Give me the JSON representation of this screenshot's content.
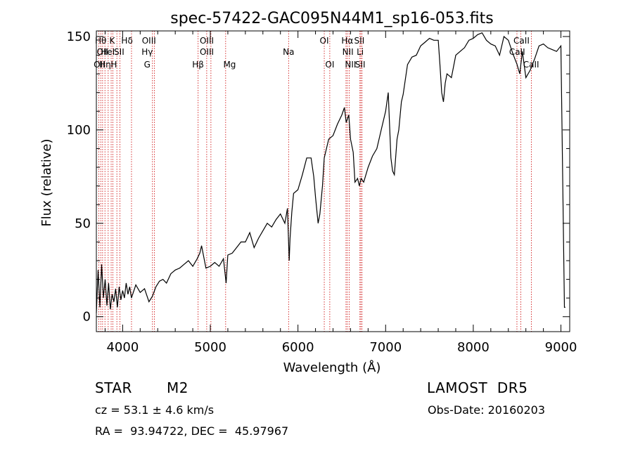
{
  "chart_data": {
    "type": "line",
    "title": "spec-57422-GAC095N44M1_sp16-053.fits",
    "xlabel": "Wavelength (Å)",
    "ylabel": "Flux (relative)",
    "xlim": [
      3700,
      9100
    ],
    "ylim": [
      -8,
      153
    ],
    "xticks": [
      4000,
      5000,
      6000,
      7000,
      8000,
      9000
    ],
    "yticks": [
      0,
      50,
      100,
      150
    ],
    "grid": false,
    "series": [
      {
        "x": [
          3700,
          3720,
          3740,
          3760,
          3780,
          3800,
          3820,
          3840,
          3860,
          3880,
          3900,
          3920,
          3940,
          3960,
          3980,
          4000,
          4020,
          4040,
          4060,
          4080,
          4100,
          4150,
          4200,
          4250,
          4300,
          4340,
          4380,
          4420,
          4460,
          4500,
          4550,
          4600,
          4650,
          4700,
          4750,
          4800,
          4850,
          4880,
          4900,
          4950,
          5000,
          5050,
          5100,
          5150,
          5180,
          5200,
          5250,
          5300,
          5350,
          5400,
          5450,
          5500,
          5550,
          5600,
          5650,
          5700,
          5750,
          5800,
          5850,
          5880,
          5900,
          5910,
          5930,
          5950,
          6000,
          6050,
          6100,
          6150,
          6180,
          6200,
          6230,
          6250,
          6280,
          6300,
          6350,
          6400,
          6450,
          6500,
          6530,
          6550,
          6580,
          6600,
          6630,
          6650,
          6680,
          6700,
          6720,
          6750,
          6800,
          6850,
          6900,
          6950,
          7000,
          7030,
          7060,
          7080,
          7100,
          7130,
          7150,
          7180,
          7200,
          7250,
          7300,
          7350,
          7400,
          7450,
          7500,
          7550,
          7600,
          7620,
          7640,
          7660,
          7680,
          7700,
          7750,
          7800,
          7850,
          7900,
          7950,
          8000,
          8050,
          8100,
          8150,
          8200,
          8250,
          8300,
          8350,
          8400,
          8450,
          8500,
          8530,
          8560,
          8600,
          8650,
          8700,
          8750,
          8800,
          8850,
          8900,
          8950,
          9000,
          9040,
          9050
        ],
        "y": [
          2,
          25,
          5,
          28,
          10,
          20,
          6,
          18,
          4,
          12,
          8,
          15,
          5,
          16,
          9,
          14,
          10,
          18,
          12,
          16,
          10,
          17,
          13,
          15,
          8,
          11,
          16,
          19,
          20,
          18,
          23,
          25,
          26,
          28,
          30,
          27,
          31,
          34,
          38,
          26,
          27,
          29,
          27,
          31,
          18,
          33,
          34,
          37,
          40,
          40,
          45,
          37,
          42,
          46,
          50,
          48,
          52,
          55,
          50,
          58,
          30,
          42,
          56,
          66,
          68,
          76,
          85,
          85,
          75,
          64,
          50,
          55,
          70,
          85,
          95,
          97,
          103,
          108,
          112,
          104,
          108,
          95,
          88,
          72,
          74,
          70,
          74,
          72,
          80,
          86,
          90,
          100,
          110,
          120,
          85,
          78,
          76,
          95,
          100,
          115,
          119,
          135,
          139,
          140,
          145,
          147,
          149,
          148,
          148,
          135,
          120,
          115,
          125,
          130,
          128,
          140,
          142,
          144,
          148,
          149,
          151,
          152,
          148,
          146,
          145,
          140,
          150,
          148,
          141,
          135,
          130,
          142,
          128,
          132,
          138,
          145,
          146,
          144,
          143,
          142,
          145,
          5,
          5
        ]
      }
    ],
    "line_labels": [
      {
        "wavelength": 3750,
        "label": "Hθ",
        "row": 0
      },
      {
        "wavelength": 3770,
        "label": "OII",
        "row": 1
      },
      {
        "wavelength": 3735,
        "label": "OII",
        "row": 2
      },
      {
        "wavelength": 3800,
        "label": "Hη",
        "row": 2
      },
      {
        "wavelength": 3830,
        "label": "HeI",
        "row": 1
      },
      {
        "wavelength": 3880,
        "label": "K",
        "row": 0
      },
      {
        "wavelength": 3900,
        "label": "H",
        "row": 2
      },
      {
        "wavelength": 3960,
        "label": "SII",
        "row": 1
      },
      {
        "wavelength": 4050,
        "label": "Hδ",
        "row": 0
      },
      {
        "wavelength": 4300,
        "label": "OIII",
        "row": 0
      },
      {
        "wavelength": 4280,
        "label": "Hγ",
        "row": 1
      },
      {
        "wavelength": 4280,
        "label": "G",
        "row": 2
      },
      {
        "wavelength": 4960,
        "label": "OIII",
        "row": 0
      },
      {
        "wavelength": 4960,
        "label": "OIII",
        "row": 1
      },
      {
        "wavelength": 4860,
        "label": "Hβ",
        "row": 2
      },
      {
        "wavelength": 5220,
        "label": "Mg",
        "row": 2
      },
      {
        "wavelength": 5893,
        "label": "Na",
        "row": 1
      },
      {
        "wavelength": 6300,
        "label": "OI",
        "row": 0
      },
      {
        "wavelength": 6363,
        "label": "OI",
        "row": 2
      },
      {
        "wavelength": 6563,
        "label": "Hα",
        "row": 0
      },
      {
        "wavelength": 6700,
        "label": "SII",
        "row": 0
      },
      {
        "wavelength": 6570,
        "label": "NII",
        "row": 1
      },
      {
        "wavelength": 6710,
        "label": "Li",
        "row": 1
      },
      {
        "wavelength": 6600,
        "label": "NII",
        "row": 2
      },
      {
        "wavelength": 6710,
        "label": "SII",
        "row": 2
      },
      {
        "wavelength": 8550,
        "label": "CaII",
        "row": 0
      },
      {
        "wavelength": 8500,
        "label": "CaII",
        "row": 1
      },
      {
        "wavelength": 8660,
        "label": "CaII",
        "row": 2
      }
    ],
    "marker_lines": [
      3727,
      3750,
      3771,
      3798,
      3835,
      3869,
      3889,
      3934,
      3968,
      4101,
      4340,
      4363,
      4861,
      4959,
      5007,
      5175,
      5893,
      6300,
      6363,
      6548,
      6563,
      6584,
      6707,
      6717,
      6731,
      8498,
      8542,
      8662
    ]
  },
  "info": {
    "object_class": "STAR",
    "subclass": "M2",
    "survey": "LAMOST  DR5",
    "cz": "cz = 53.1 ± 4.6 km/s",
    "obs_date": "Obs-Date: 20160203",
    "coords": "RA =  93.94722, DEC =  45.97967"
  },
  "colors": {
    "spectrum": "#000000",
    "marker": "#cc0000",
    "axes": "#000000"
  }
}
